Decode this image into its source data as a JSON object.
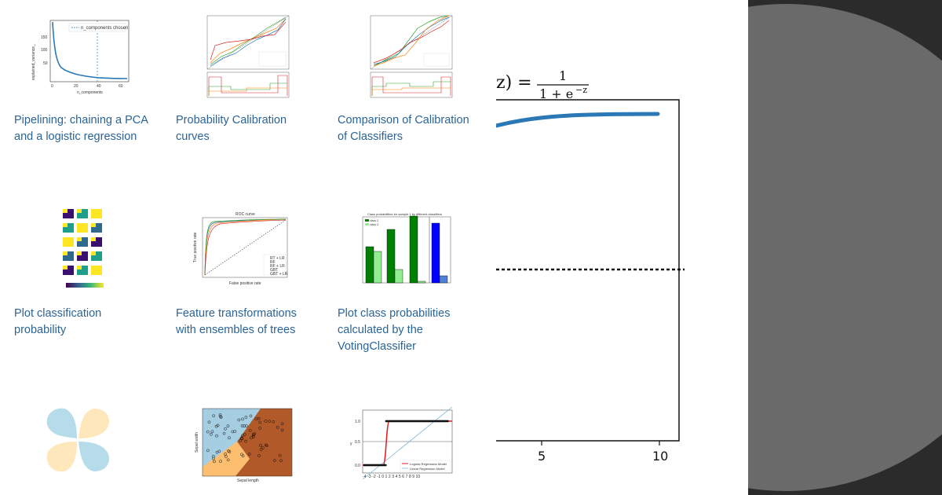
{
  "gallery": {
    "items": [
      {
        "caption": "Pipelining: chaining a PCA\nand a logistic regression"
      },
      {
        "caption": "Probability Calibration\ncurves"
      },
      {
        "caption": "Comparison of Calibration\nof Classifiers"
      },
      {
        "caption": "Plot classification\nprobability"
      },
      {
        "caption": "Feature transformations\nwith ensembles of trees"
      },
      {
        "caption": "Plot class probabilities\ncalculated by the\nVotingClassifier"
      },
      {
        "caption": ""
      },
      {
        "caption": ""
      },
      {
        "caption": ""
      }
    ]
  },
  "thumbs": {
    "pca": {
      "legend": "n_components chosen",
      "xlabel": "n_components",
      "ylabel": "explained_variance_",
      "yticks": [
        "150",
        "100",
        "50"
      ],
      "xticks": [
        "0",
        "20",
        "40",
        "60"
      ]
    },
    "roc": {
      "title": "ROC curve",
      "xlabel": "False positive rate",
      "ylabel": "True positive rate",
      "legend": [
        "RT + LR",
        "RF",
        "RF + LR",
        "GBT",
        "GBT + LR"
      ]
    },
    "voting": {
      "title": "Class probabilities for sample 1 by different classifiers",
      "legend": [
        "class 1",
        "class 2"
      ]
    },
    "iris": {
      "xlabel": "Sepal length",
      "ylabel": "Sepal width"
    },
    "logistic": {
      "ylabel": "y",
      "yticks": [
        "1.0",
        "0.5",
        "0.0"
      ],
      "xticks": "-4 -3 -2 -1 0 1 2 3 4 5 6 7 8 9 10",
      "legend": [
        "Logistic Regression Model",
        "Linear Regression Model"
      ]
    }
  },
  "sigmoid": {
    "equation_left": "z) =",
    "numerator": "1",
    "denominator": "1 + e",
    "exponent": "−z",
    "xticks": [
      "5",
      "10"
    ]
  },
  "colors": {
    "link": "#2a6496",
    "dark_background": "#2b2b2b",
    "circle": "#6a6a6a",
    "sigmoid_curve": "#2a78b5"
  }
}
